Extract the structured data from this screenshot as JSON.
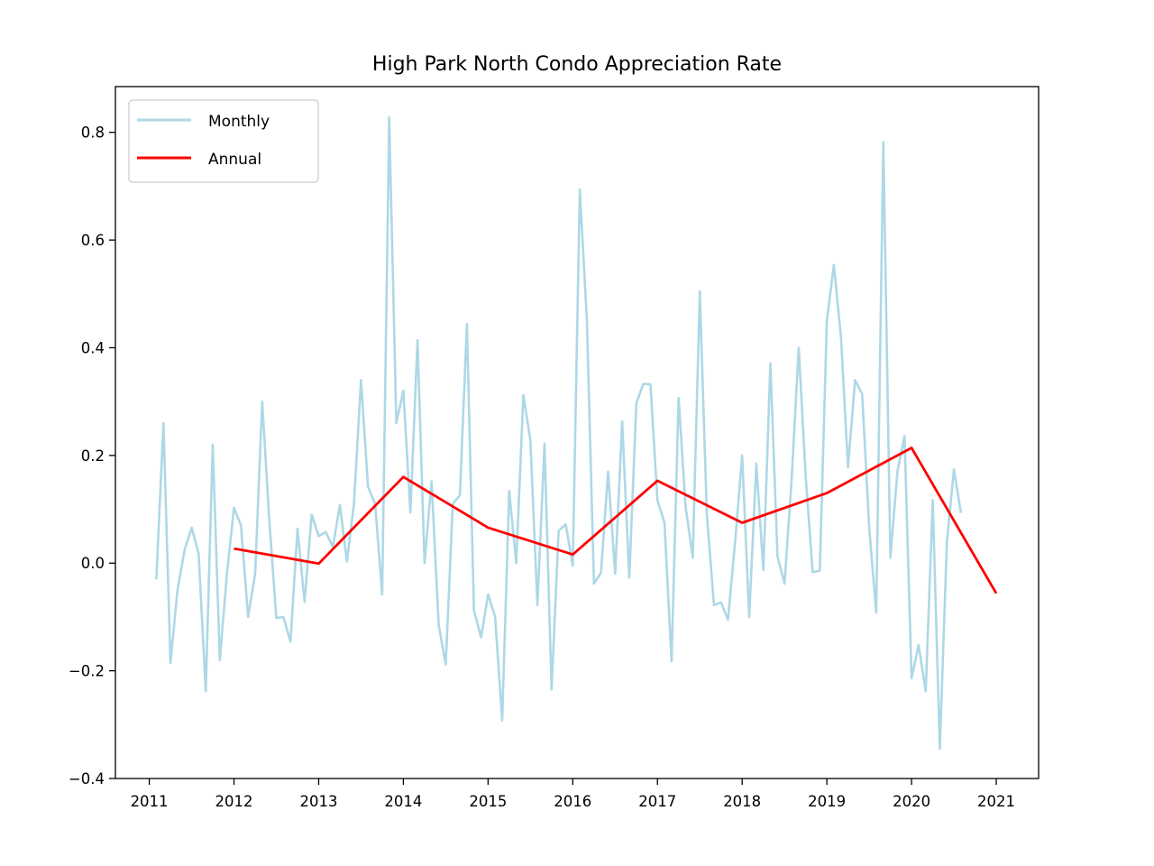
{
  "chart_data": {
    "type": "line",
    "title": "High Park North Condo Appreciation Rate",
    "xlabel": "",
    "ylabel": "",
    "xlim": [
      2010.6,
      2021.5
    ],
    "ylim": [
      -0.4,
      0.885
    ],
    "x_ticks": [
      2011,
      2012,
      2013,
      2014,
      2015,
      2016,
      2017,
      2018,
      2019,
      2020,
      2021
    ],
    "x_tick_labels": [
      "2011",
      "2012",
      "2013",
      "2014",
      "2015",
      "2016",
      "2017",
      "2018",
      "2019",
      "2020",
      "2021"
    ],
    "y_ticks": [
      -0.4,
      -0.2,
      0.0,
      0.2,
      0.4,
      0.6,
      0.8
    ],
    "y_tick_labels": [
      "−0.4",
      "−0.2",
      "0.0",
      "0.2",
      "0.4",
      "0.6",
      "0.8"
    ],
    "grid": false,
    "legend_position": "top-left",
    "series": [
      {
        "name": "Monthly",
        "color": "#add8e6",
        "x": [
          2011.083,
          2011.167,
          2011.25,
          2011.333,
          2011.417,
          2011.5,
          2011.583,
          2011.667,
          2011.75,
          2011.833,
          2011.917,
          2012.0,
          2012.083,
          2012.167,
          2012.25,
          2012.333,
          2012.417,
          2012.5,
          2012.583,
          2012.667,
          2012.75,
          2012.833,
          2012.917,
          2013.0,
          2013.083,
          2013.167,
          2013.25,
          2013.333,
          2013.417,
          2013.5,
          2013.583,
          2013.667,
          2013.75,
          2013.833,
          2013.917,
          2014.0,
          2014.083,
          2014.167,
          2014.25,
          2014.333,
          2014.417,
          2014.5,
          2014.583,
          2014.667,
          2014.75,
          2014.833,
          2014.917,
          2015.0,
          2015.083,
          2015.167,
          2015.25,
          2015.333,
          2015.417,
          2015.5,
          2015.583,
          2015.667,
          2015.75,
          2015.833,
          2015.917,
          2016.0,
          2016.083,
          2016.167,
          2016.25,
          2016.333,
          2016.417,
          2016.5,
          2016.583,
          2016.667,
          2016.75,
          2016.833,
          2016.917,
          2017.0,
          2017.083,
          2017.167,
          2017.25,
          2017.333,
          2017.417,
          2017.5,
          2017.583,
          2017.667,
          2017.75,
          2017.833,
          2017.917,
          2018.0,
          2018.083,
          2018.167,
          2018.25,
          2018.333,
          2018.417,
          2018.5,
          2018.583,
          2018.667,
          2018.75,
          2018.833,
          2018.917,
          2019.0,
          2019.083,
          2019.167,
          2019.25,
          2019.333,
          2019.417,
          2019.5,
          2019.583,
          2019.667,
          2019.75,
          2019.833,
          2019.917,
          2020.0,
          2020.083,
          2020.167,
          2020.25,
          2020.333,
          2020.417,
          2020.5,
          2020.583
        ],
        "values": [
          -0.03,
          0.26,
          -0.185,
          -0.05,
          0.025,
          0.066,
          0.018,
          -0.238,
          0.22,
          -0.18,
          -0.02,
          0.103,
          0.07,
          -0.1,
          -0.02,
          0.3,
          0.08,
          -0.102,
          -0.1,
          -0.146,
          0.064,
          -0.072,
          0.09,
          0.05,
          0.058,
          0.03,
          0.108,
          0.003,
          0.11,
          0.34,
          0.142,
          0.11,
          -0.058,
          0.828,
          0.26,
          0.32,
          0.094,
          0.414,
          0.0,
          0.152,
          -0.115,
          -0.188,
          0.11,
          0.126,
          0.444,
          -0.088,
          -0.138,
          -0.058,
          -0.1,
          -0.292,
          0.134,
          0.0,
          0.312,
          0.228,
          -0.078,
          0.222,
          -0.235,
          0.06,
          0.072,
          -0.005,
          0.694,
          0.45,
          -0.038,
          -0.018,
          0.17,
          -0.02,
          0.263,
          -0.027,
          0.297,
          0.333,
          0.332,
          0.117,
          0.075,
          -0.182,
          0.307,
          0.104,
          0.01,
          0.505,
          0.091,
          -0.078,
          -0.073,
          -0.105,
          0.04,
          0.2,
          -0.1,
          0.185,
          -0.013,
          0.371,
          0.012,
          -0.038,
          0.154,
          0.4,
          0.16,
          -0.017,
          -0.014,
          0.45,
          0.554,
          0.42,
          0.178,
          0.34,
          0.314,
          0.066,
          -0.092,
          0.782,
          0.01,
          0.17,
          0.236,
          -0.214,
          -0.152,
          -0.238,
          0.117,
          -0.345,
          0.04,
          0.174,
          0.093
        ]
      },
      {
        "name": "Annual",
        "color": "#ff0000",
        "x": [
          2012,
          2013,
          2014,
          2015,
          2016,
          2017,
          2018,
          2019,
          2020,
          2021
        ],
        "values": [
          0.027,
          -0.001,
          0.16,
          0.066,
          0.016,
          0.153,
          0.075,
          0.13,
          0.214,
          -0.056
        ]
      }
    ]
  }
}
